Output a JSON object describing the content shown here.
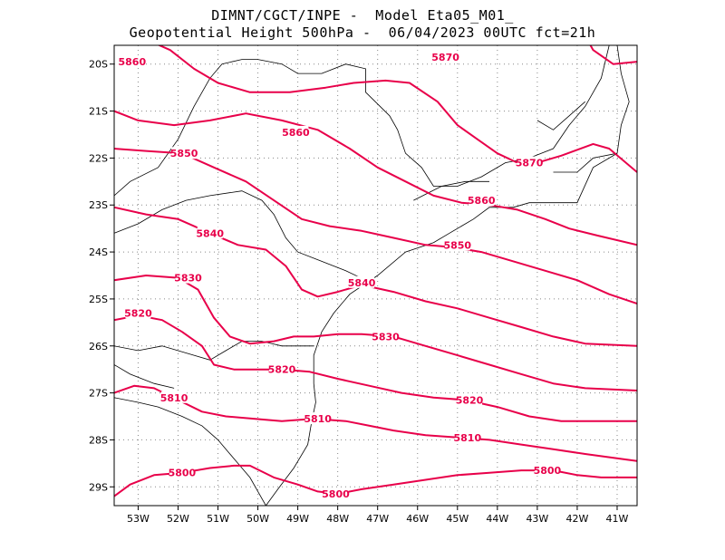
{
  "header": {
    "line1": "DIMNT/CGCT/INPE -  Model Eta05_M01_",
    "line2": "Geopotential Height 500hPa -  06/04/2023 00UTC fct=21h"
  },
  "colors": {
    "contour": "#e8004a",
    "coast": "#000000",
    "grid": "#888888"
  },
  "map": {
    "lon_range": [
      -53.6,
      -40.5
    ],
    "lat_range": [
      -29.4,
      -19.6
    ],
    "lat_ticks": [
      {
        "v": -20,
        "label": "20S"
      },
      {
        "v": -21,
        "label": "21S"
      },
      {
        "v": -22,
        "label": "22S"
      },
      {
        "v": -23,
        "label": "23S"
      },
      {
        "v": -24,
        "label": "24S"
      },
      {
        "v": -25,
        "label": "25S"
      },
      {
        "v": -26,
        "label": "26S"
      },
      {
        "v": -27,
        "label": "27S"
      },
      {
        "v": -28,
        "label": "28S"
      },
      {
        "v": -29,
        "label": "29S"
      }
    ],
    "lon_ticks": [
      {
        "v": -53,
        "label": "53W"
      },
      {
        "v": -52,
        "label": "52W"
      },
      {
        "v": -51,
        "label": "51W"
      },
      {
        "v": -50,
        "label": "50W"
      },
      {
        "v": -49,
        "label": "49W"
      },
      {
        "v": -48,
        "label": "48W"
      },
      {
        "v": -47,
        "label": "47W"
      },
      {
        "v": -46,
        "label": "46W"
      },
      {
        "v": -45,
        "label": "45W"
      },
      {
        "v": -44,
        "label": "44W"
      },
      {
        "v": -43,
        "label": "43W"
      },
      {
        "v": -42,
        "label": "42W"
      },
      {
        "v": -41,
        "label": "41W"
      }
    ],
    "contours": [
      {
        "value": "5870",
        "label_at": [
          [
            -45.3,
            -19.85
          ],
          [
            -43.2,
            -22.1
          ]
        ],
        "points": [
          [
            -53.0,
            -19.4
          ],
          [
            -52.2,
            -19.7
          ],
          [
            -51.6,
            -20.1
          ],
          [
            -51.0,
            -20.4
          ],
          [
            -50.2,
            -20.6
          ],
          [
            -49.2,
            -20.6
          ],
          [
            -48.3,
            -20.5
          ],
          [
            -47.6,
            -20.4
          ],
          [
            -46.8,
            -20.35
          ],
          [
            -46.2,
            -20.4
          ],
          [
            -45.5,
            -20.8
          ],
          [
            -45.0,
            -21.3
          ],
          [
            -44.5,
            -21.6
          ],
          [
            -44.0,
            -21.9
          ],
          [
            -43.5,
            -22.1
          ],
          [
            -43.0,
            -22.1
          ],
          [
            -42.4,
            -21.95
          ],
          [
            -41.6,
            -21.7
          ],
          [
            -41.2,
            -21.8
          ],
          [
            -40.5,
            -22.3
          ]
        ]
      },
      {
        "value": "5870",
        "label_at": [],
        "points": [
          [
            -41.8,
            -19.4
          ],
          [
            -41.6,
            -19.7
          ],
          [
            -41.1,
            -20.0
          ],
          [
            -40.5,
            -19.95
          ]
        ]
      },
      {
        "value": "5860",
        "label_at": [
          [
            -53.15,
            -19.95
          ],
          [
            -49.05,
            -21.45
          ],
          [
            -44.4,
            -22.9
          ]
        ],
        "points": [
          [
            -53.6,
            -21.0
          ],
          [
            -53.0,
            -21.2
          ],
          [
            -52.1,
            -21.3
          ],
          [
            -51.2,
            -21.2
          ],
          [
            -50.3,
            -21.05
          ],
          [
            -49.4,
            -21.2
          ],
          [
            -48.5,
            -21.4
          ],
          [
            -47.7,
            -21.8
          ],
          [
            -47.0,
            -22.2
          ],
          [
            -46.3,
            -22.5
          ],
          [
            -45.6,
            -22.8
          ],
          [
            -44.9,
            -22.95
          ],
          [
            -44.2,
            -23.0
          ],
          [
            -43.5,
            -23.1
          ],
          [
            -42.8,
            -23.3
          ],
          [
            -42.2,
            -23.5
          ],
          [
            -41.5,
            -23.65
          ],
          [
            -40.5,
            -23.85
          ]
        ]
      },
      {
        "value": "5850",
        "label_at": [
          [
            -51.85,
            -21.9
          ],
          [
            -45.0,
            -23.85
          ]
        ],
        "points": [
          [
            -53.6,
            -21.8
          ],
          [
            -52.8,
            -21.85
          ],
          [
            -51.9,
            -21.9
          ],
          [
            -51.1,
            -22.2
          ],
          [
            -50.3,
            -22.5
          ],
          [
            -49.6,
            -22.9
          ],
          [
            -48.9,
            -23.3
          ],
          [
            -48.2,
            -23.45
          ],
          [
            -47.4,
            -23.55
          ],
          [
            -46.6,
            -23.7
          ],
          [
            -45.8,
            -23.85
          ],
          [
            -45.1,
            -23.9
          ],
          [
            -44.4,
            -24.0
          ],
          [
            -43.6,
            -24.2
          ],
          [
            -42.8,
            -24.4
          ],
          [
            -42.0,
            -24.6
          ],
          [
            -41.2,
            -24.9
          ],
          [
            -40.5,
            -25.1
          ]
        ]
      },
      {
        "value": "5840",
        "label_at": [
          [
            -51.2,
            -23.6
          ],
          [
            -47.4,
            -24.65
          ]
        ],
        "points": [
          [
            -53.6,
            -23.05
          ],
          [
            -52.8,
            -23.2
          ],
          [
            -52.0,
            -23.3
          ],
          [
            -51.2,
            -23.6
          ],
          [
            -50.5,
            -23.85
          ],
          [
            -49.8,
            -23.95
          ],
          [
            -49.3,
            -24.3
          ],
          [
            -48.9,
            -24.8
          ],
          [
            -48.5,
            -24.95
          ],
          [
            -48.0,
            -24.85
          ],
          [
            -47.4,
            -24.7
          ],
          [
            -46.6,
            -24.85
          ],
          [
            -45.8,
            -25.05
          ],
          [
            -45.0,
            -25.2
          ],
          [
            -44.2,
            -25.4
          ],
          [
            -43.4,
            -25.6
          ],
          [
            -42.6,
            -25.8
          ],
          [
            -41.8,
            -25.95
          ],
          [
            -40.5,
            -26.0
          ]
        ]
      },
      {
        "value": "5830",
        "label_at": [
          [
            -51.75,
            -24.55
          ],
          [
            -46.8,
            -25.8
          ]
        ],
        "points": [
          [
            -53.6,
            -24.6
          ],
          [
            -52.8,
            -24.5
          ],
          [
            -52.0,
            -24.55
          ],
          [
            -51.5,
            -24.8
          ],
          [
            -51.1,
            -25.4
          ],
          [
            -50.7,
            -25.8
          ],
          [
            -50.2,
            -25.95
          ],
          [
            -49.6,
            -25.9
          ],
          [
            -49.1,
            -25.8
          ],
          [
            -48.6,
            -25.8
          ],
          [
            -48.0,
            -25.75
          ],
          [
            -47.4,
            -25.75
          ],
          [
            -46.6,
            -25.8
          ],
          [
            -45.8,
            -26.0
          ],
          [
            -45.0,
            -26.2
          ],
          [
            -44.2,
            -26.4
          ],
          [
            -43.4,
            -26.6
          ],
          [
            -42.6,
            -26.8
          ],
          [
            -41.8,
            -26.9
          ],
          [
            -40.5,
            -26.95
          ]
        ]
      },
      {
        "value": "5820",
        "label_at": [
          [
            -53.0,
            -25.3
          ],
          [
            -49.4,
            -26.5
          ],
          [
            -44.7,
            -27.15
          ]
        ],
        "points": [
          [
            -53.6,
            -25.45
          ],
          [
            -53.0,
            -25.35
          ],
          [
            -52.4,
            -25.45
          ],
          [
            -51.9,
            -25.7
          ],
          [
            -51.4,
            -26.0
          ],
          [
            -51.1,
            -26.4
          ],
          [
            -50.6,
            -26.5
          ],
          [
            -50.0,
            -26.5
          ],
          [
            -49.4,
            -26.5
          ],
          [
            -48.7,
            -26.55
          ],
          [
            -48.0,
            -26.7
          ],
          [
            -47.2,
            -26.85
          ],
          [
            -46.4,
            -27.0
          ],
          [
            -45.6,
            -27.1
          ],
          [
            -44.8,
            -27.15
          ],
          [
            -44.0,
            -27.3
          ],
          [
            -43.2,
            -27.5
          ],
          [
            -42.4,
            -27.6
          ],
          [
            -41.6,
            -27.6
          ],
          [
            -40.5,
            -27.6
          ]
        ]
      },
      {
        "value": "5810",
        "label_at": [
          [
            -52.1,
            -27.1
          ],
          [
            -48.5,
            -27.55
          ],
          [
            -44.75,
            -27.95
          ]
        ],
        "points": [
          [
            -53.6,
            -27.0
          ],
          [
            -53.1,
            -26.85
          ],
          [
            -52.6,
            -26.9
          ],
          [
            -52.0,
            -27.15
          ],
          [
            -51.4,
            -27.4
          ],
          [
            -50.8,
            -27.5
          ],
          [
            -50.1,
            -27.55
          ],
          [
            -49.4,
            -27.6
          ],
          [
            -48.6,
            -27.55
          ],
          [
            -47.8,
            -27.6
          ],
          [
            -47.2,
            -27.7
          ],
          [
            -46.6,
            -27.8
          ],
          [
            -45.8,
            -27.9
          ],
          [
            -45.0,
            -27.95
          ],
          [
            -44.2,
            -28.0
          ],
          [
            -43.4,
            -28.1
          ],
          [
            -42.6,
            -28.2
          ],
          [
            -41.8,
            -28.3
          ],
          [
            -40.5,
            -28.45
          ]
        ]
      },
      {
        "value": "5800",
        "label_at": [
          [
            -51.9,
            -28.7
          ],
          [
            -48.05,
            -29.15
          ],
          [
            -42.75,
            -28.65
          ]
        ],
        "points": [
          [
            -53.6,
            -29.2
          ],
          [
            -53.2,
            -28.95
          ],
          [
            -52.6,
            -28.75
          ],
          [
            -51.9,
            -28.7
          ],
          [
            -51.2,
            -28.6
          ],
          [
            -50.6,
            -28.55
          ],
          [
            -50.2,
            -28.55
          ],
          [
            -49.6,
            -28.8
          ],
          [
            -49.0,
            -28.95
          ],
          [
            -48.5,
            -29.1
          ],
          [
            -48.0,
            -29.15
          ],
          [
            -47.4,
            -29.05
          ],
          [
            -46.6,
            -28.95
          ],
          [
            -45.8,
            -28.85
          ],
          [
            -45.0,
            -28.75
          ],
          [
            -44.2,
            -28.7
          ],
          [
            -43.4,
            -28.65
          ],
          [
            -42.6,
            -28.65
          ],
          [
            -42.0,
            -28.75
          ],
          [
            -41.4,
            -28.8
          ],
          [
            -40.5,
            -28.8
          ]
        ]
      }
    ],
    "coast_lines": [
      [
        [
          -41.0,
          -19.6
        ],
        [
          -40.9,
          -20.2
        ],
        [
          -40.7,
          -20.8
        ],
        [
          -40.9,
          -21.3
        ],
        [
          -41.0,
          -21.9
        ],
        [
          -41.6,
          -22.2
        ],
        [
          -42.0,
          -22.95
        ],
        [
          -42.8,
          -22.95
        ],
        [
          -43.2,
          -22.95
        ],
        [
          -43.6,
          -23.05
        ],
        [
          -44.2,
          -23.05
        ],
        [
          -44.6,
          -23.3
        ],
        [
          -45.2,
          -23.6
        ],
        [
          -45.6,
          -23.8
        ],
        [
          -46.3,
          -24.0
        ],
        [
          -47.0,
          -24.5
        ],
        [
          -47.7,
          -24.9
        ],
        [
          -48.1,
          -25.3
        ],
        [
          -48.4,
          -25.7
        ],
        [
          -48.6,
          -26.2
        ],
        [
          -48.6,
          -26.8
        ],
        [
          -48.55,
          -27.2
        ],
        [
          -48.65,
          -27.6
        ],
        [
          -48.75,
          -28.1
        ],
        [
          -49.1,
          -28.6
        ],
        [
          -49.5,
          -29.05
        ],
        [
          -49.8,
          -29.4
        ]
      ],
      [
        [
          -53.6,
          -22.8
        ],
        [
          -53.2,
          -22.5
        ],
        [
          -52.5,
          -22.2
        ],
        [
          -52.0,
          -21.6
        ],
        [
          -51.6,
          -20.9
        ],
        [
          -51.2,
          -20.3
        ],
        [
          -50.9,
          -20.0
        ],
        [
          -50.4,
          -19.9
        ],
        [
          -50.0,
          -19.9
        ],
        [
          -49.4,
          -20.0
        ],
        [
          -49.0,
          -20.2
        ],
        [
          -48.4,
          -20.2
        ],
        [
          -47.8,
          -20.0
        ],
        [
          -47.3,
          -20.1
        ],
        [
          -47.3,
          -20.6
        ],
        [
          -46.7,
          -21.1
        ],
        [
          -46.5,
          -21.4
        ],
        [
          -46.3,
          -21.9
        ],
        [
          -45.9,
          -22.2
        ],
        [
          -45.6,
          -22.6
        ],
        [
          -45.0,
          -22.6
        ],
        [
          -44.4,
          -22.4
        ],
        [
          -43.8,
          -22.1
        ],
        [
          -43.2,
          -22.0
        ],
        [
          -42.6,
          -21.8
        ],
        [
          -42.2,
          -21.3
        ],
        [
          -41.8,
          -20.9
        ],
        [
          -41.4,
          -20.3
        ],
        [
          -41.2,
          -19.6
        ]
      ],
      [
        [
          -53.6,
          -23.6
        ],
        [
          -53.0,
          -23.4
        ],
        [
          -52.4,
          -23.1
        ],
        [
          -51.8,
          -22.9
        ],
        [
          -51.2,
          -22.8
        ],
        [
          -50.4,
          -22.7
        ],
        [
          -49.9,
          -22.9
        ],
        [
          -49.6,
          -23.2
        ],
        [
          -49.3,
          -23.7
        ],
        [
          -49.0,
          -24.0
        ],
        [
          -48.4,
          -24.2
        ],
        [
          -47.8,
          -24.4
        ],
        [
          -47.3,
          -24.6
        ]
      ],
      [
        [
          -53.6,
          -26.0
        ],
        [
          -53.0,
          -26.1
        ],
        [
          -52.4,
          -26.0
        ],
        [
          -51.6,
          -26.2
        ],
        [
          -51.2,
          -26.3
        ],
        [
          -50.8,
          -26.1
        ],
        [
          -50.4,
          -25.9
        ],
        [
          -49.9,
          -25.9
        ],
        [
          -49.4,
          -26.0
        ],
        [
          -48.8,
          -26.0
        ],
        [
          -48.6,
          -26.0
        ]
      ],
      [
        [
          -53.6,
          -27.1
        ],
        [
          -53.0,
          -27.2
        ],
        [
          -52.5,
          -27.3
        ],
        [
          -51.9,
          -27.5
        ],
        [
          -51.4,
          -27.7
        ],
        [
          -51.0,
          -28.0
        ],
        [
          -50.5,
          -28.5
        ],
        [
          -50.2,
          -28.8
        ],
        [
          -50.0,
          -29.1
        ],
        [
          -49.8,
          -29.4
        ]
      ],
      [
        [
          -53.6,
          -26.4
        ],
        [
          -53.2,
          -26.6
        ],
        [
          -52.6,
          -26.8
        ],
        [
          -52.1,
          -26.9
        ]
      ],
      [
        [
          -46.1,
          -22.9
        ],
        [
          -45.4,
          -22.6
        ],
        [
          -44.8,
          -22.5
        ],
        [
          -44.2,
          -22.5
        ]
      ],
      [
        [
          -42.6,
          -22.3
        ],
        [
          -42.0,
          -22.3
        ],
        [
          -41.6,
          -22.0
        ],
        [
          -41.0,
          -21.9
        ]
      ],
      [
        [
          -43.0,
          -21.2
        ],
        [
          -42.6,
          -21.4
        ],
        [
          -42.2,
          -21.1
        ],
        [
          -41.8,
          -20.8
        ]
      ]
    ]
  }
}
